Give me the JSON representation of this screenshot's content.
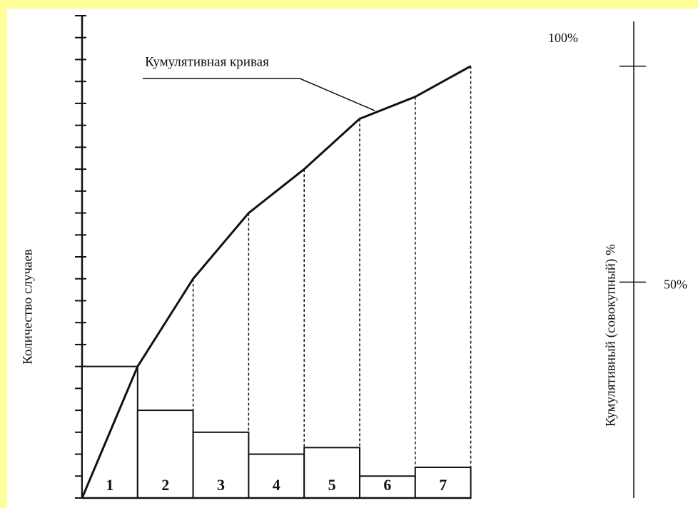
{
  "chart_data": {
    "type": "pareto",
    "annotation": "Кумулятивная кривая",
    "ylabel": "Количество случаев",
    "y2label": "Кумулятивный (совокупный) %",
    "categories": [
      "1",
      "2",
      "3",
      "4",
      "5",
      "6",
      "7"
    ],
    "values": [
      6,
      4,
      3,
      2,
      2.3,
      1,
      1.4
    ],
    "color": "#ffffff",
    "ylim": [
      0,
      22
    ],
    "yticks": [
      0,
      1,
      2,
      3,
      4,
      5,
      6,
      7,
      8,
      9,
      10,
      11,
      12,
      13,
      14,
      15,
      16,
      17,
      18,
      19,
      20,
      21,
      22
    ],
    "y2lim": [
      0,
      111.7
    ],
    "y2ticks": [
      {
        "value": 50,
        "label": "50%"
      },
      {
        "value": 100,
        "label": "100%"
      }
    ]
  }
}
